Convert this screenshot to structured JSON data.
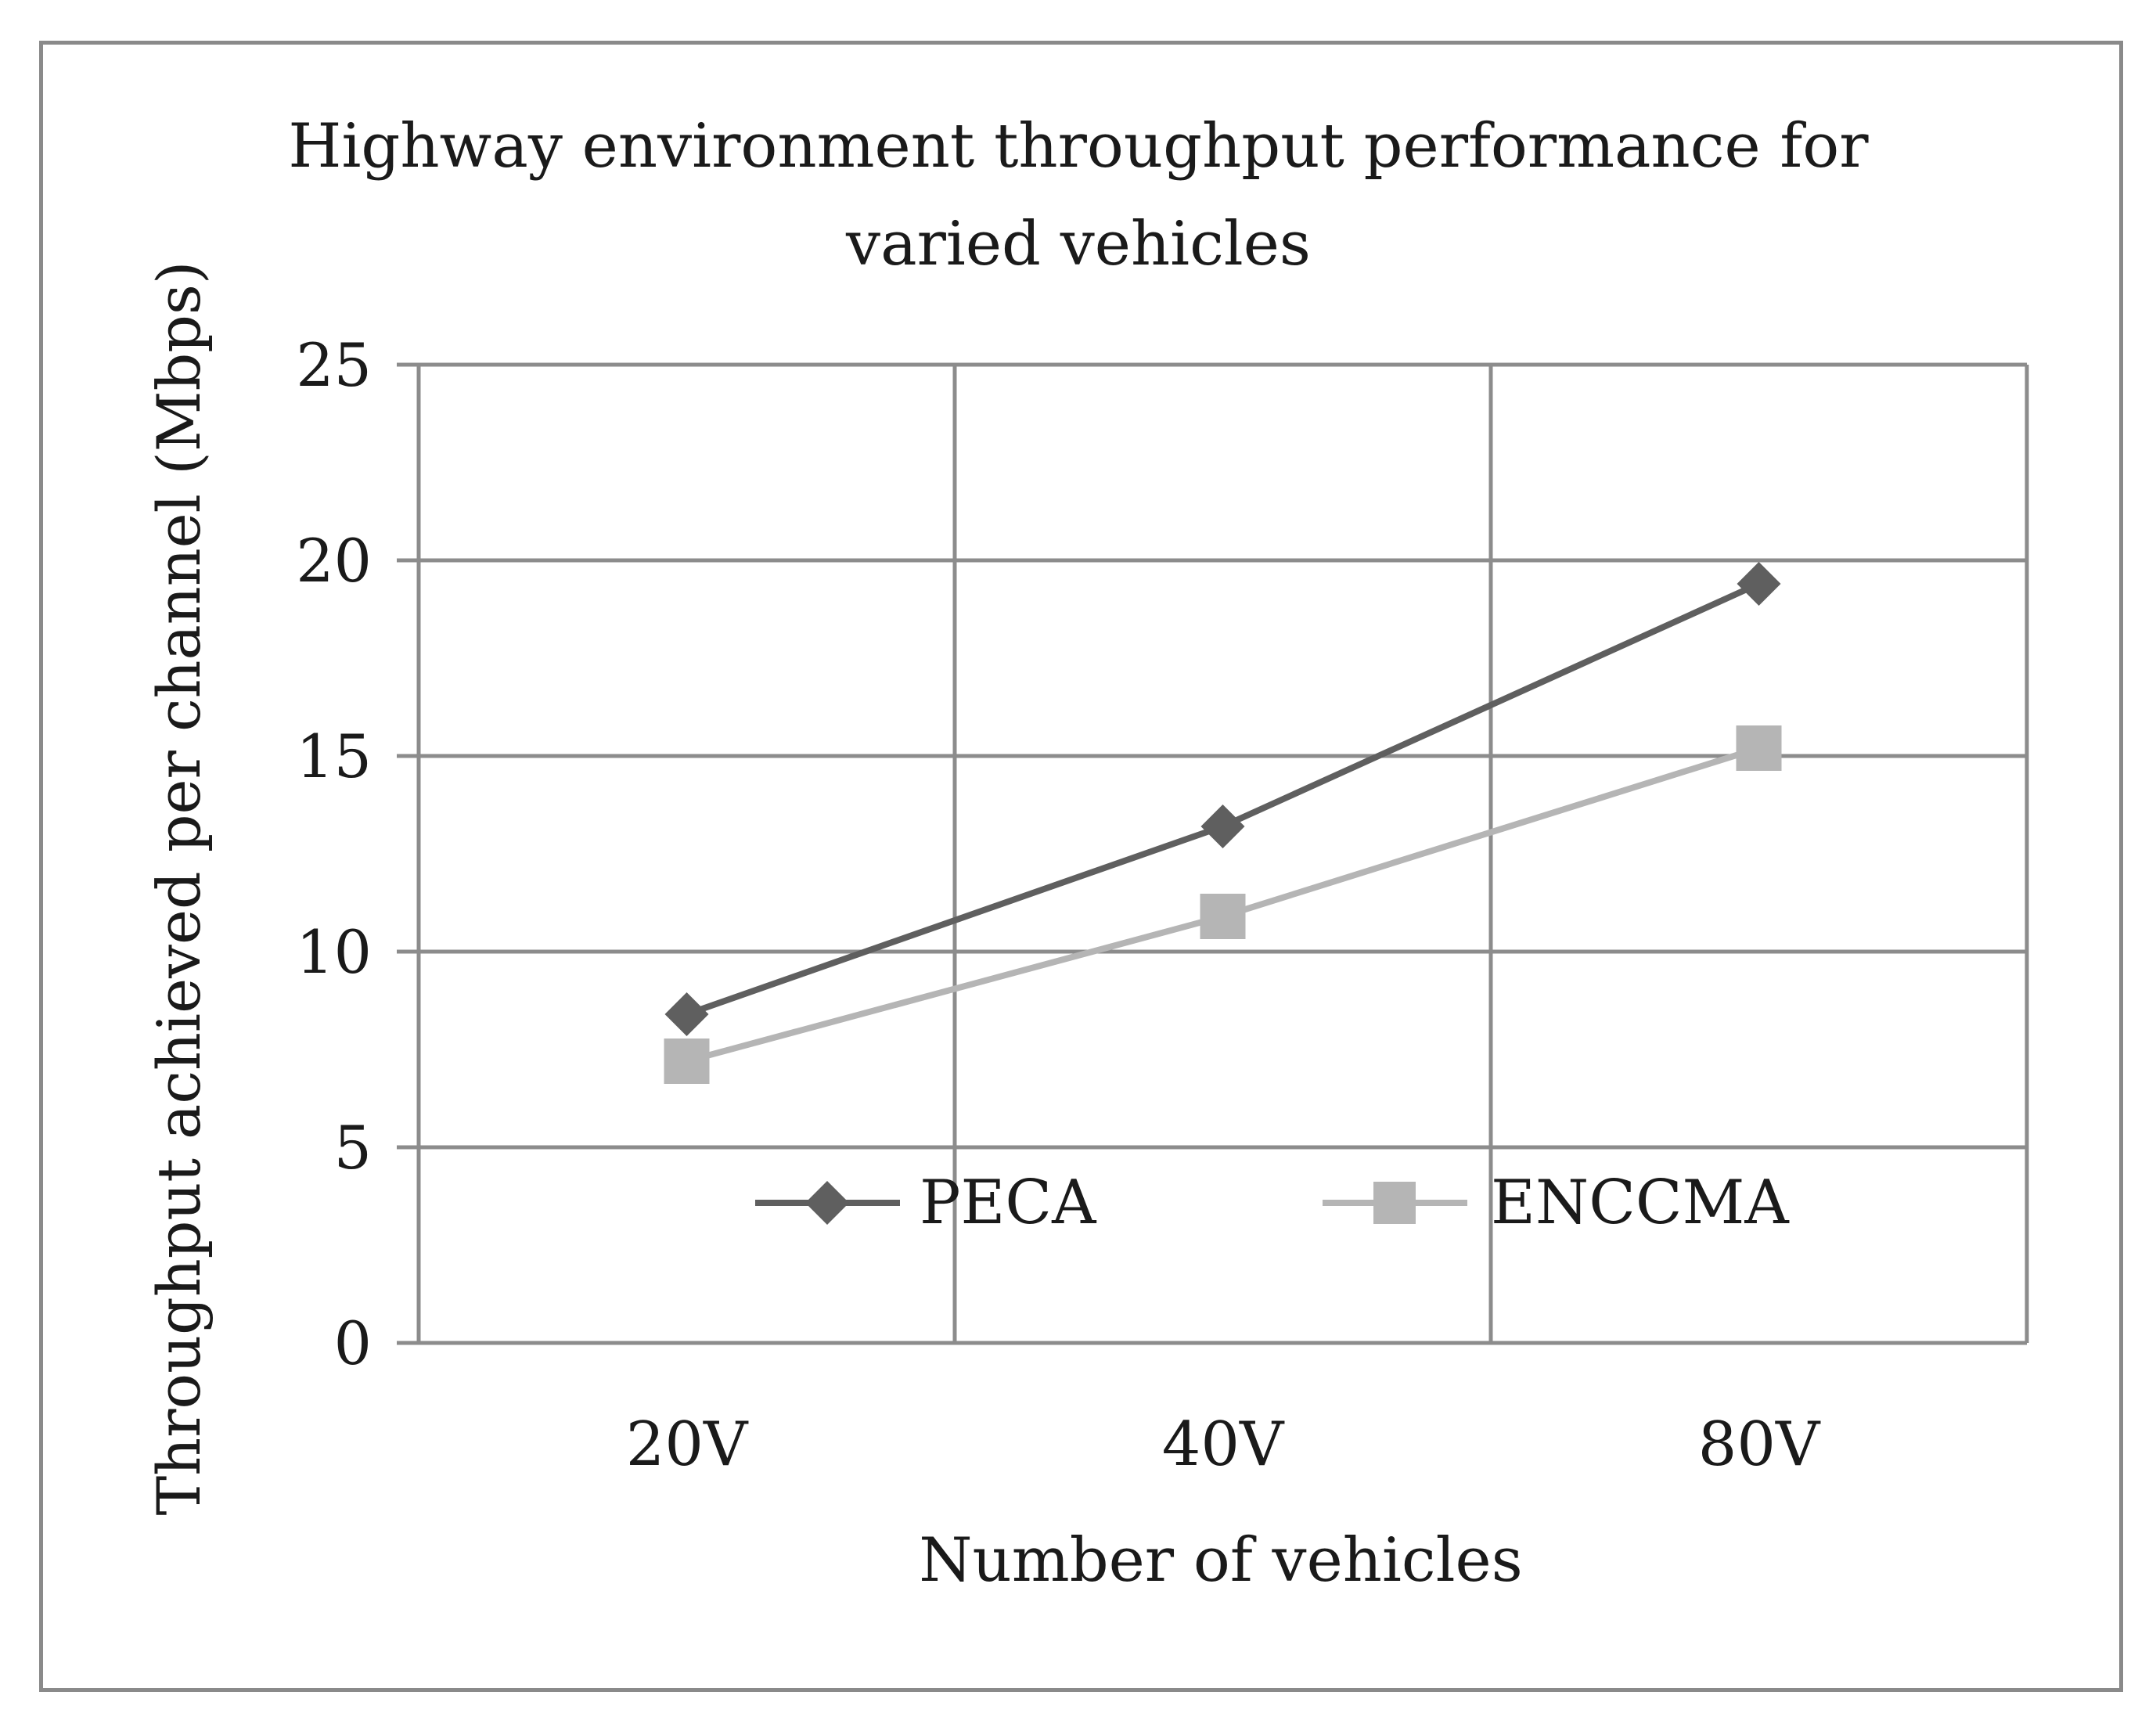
{
  "chart_data": {
    "type": "line",
    "title_lines": [
      "Highway environment throughput performance for",
      "varied vehicles"
    ],
    "xlabel": "Number of vehicles",
    "ylabel": "Throughput achieved per channel (Mbps)",
    "categories": [
      "20V",
      "40V",
      "80V"
    ],
    "ylim": [
      0,
      25
    ],
    "yticks": [
      "0",
      "5",
      "10",
      "15",
      "20",
      "25"
    ],
    "grid": true,
    "legend_position": "inside-bottom",
    "series": [
      {
        "name": "PECA",
        "values": [
          8.4,
          13.2,
          19.4
        ],
        "color": "#5f5f5f",
        "marker": "diamond"
      },
      {
        "name": "ENCCMA",
        "values": [
          7.2,
          10.9,
          15.2
        ],
        "color": "#b5b5b5",
        "marker": "square"
      }
    ]
  }
}
